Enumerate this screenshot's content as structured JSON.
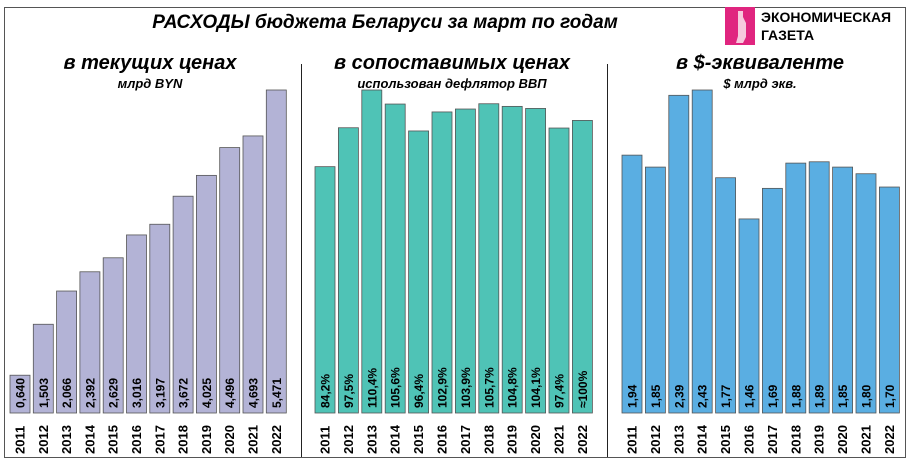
{
  "title": "РАСХОДЫ бюджета Беларуси за март по годам",
  "logo": {
    "line1": "ЭКОНОМИЧЕСКАЯ",
    "line2": "ГАЗЕТА",
    "color": "#e0257f"
  },
  "chart_data": [
    {
      "type": "bar",
      "title": "в текущих ценах",
      "subtitle": "млрд BYN",
      "color": "#b3b3d6",
      "categories": [
        "2011",
        "2012",
        "2013",
        "2014",
        "2015",
        "2016",
        "2017",
        "2018",
        "2019",
        "2020",
        "2021",
        "2022"
      ],
      "values": [
        0.64,
        1.503,
        2.066,
        2.392,
        2.629,
        3.016,
        3.197,
        3.672,
        4.025,
        4.496,
        4.693,
        5.471
      ],
      "labels": [
        "0,640",
        "1,503",
        "2,066",
        "2,392",
        "2,629",
        "3,016",
        "3,197",
        "3,672",
        "4,025",
        "4,496",
        "4,693",
        "5,471"
      ]
    },
    {
      "type": "bar",
      "title": "в сопоставимых ценах",
      "subtitle": "использован дефлятор ВВП",
      "color": "#4fc3b6",
      "categories": [
        "2011",
        "2012",
        "2013",
        "2014",
        "2015",
        "2016",
        "2017",
        "2018",
        "2019",
        "2020",
        "2021",
        "2022"
      ],
      "values": [
        84.2,
        97.5,
        110.4,
        105.6,
        96.4,
        102.9,
        103.9,
        105.7,
        104.8,
        104.1,
        97.4,
        100
      ],
      "labels": [
        "84,2%",
        "97,5%",
        "110,4%",
        "105,6%",
        "96,4%",
        "102,9%",
        "103,9%",
        "105,7%",
        "104,8%",
        "104,1%",
        "97,4%",
        "≈100%"
      ]
    },
    {
      "type": "bar",
      "title": "в $-эквиваленте",
      "subtitle": "$ млрд экв.",
      "color": "#5aaee2",
      "categories": [
        "2011",
        "2012",
        "2013",
        "2014",
        "2015",
        "2016",
        "2017",
        "2018",
        "2019",
        "2020",
        "2021",
        "2022"
      ],
      "values": [
        1.94,
        1.85,
        2.39,
        2.43,
        1.77,
        1.46,
        1.69,
        1.88,
        1.89,
        1.85,
        1.8,
        1.7
      ],
      "labels": [
        "1,94",
        "1,85",
        "2,39",
        "2,43",
        "1,77",
        "1,46",
        "1,69",
        "1,88",
        "1,89",
        "1,85",
        "1,80",
        "1,70"
      ]
    }
  ]
}
